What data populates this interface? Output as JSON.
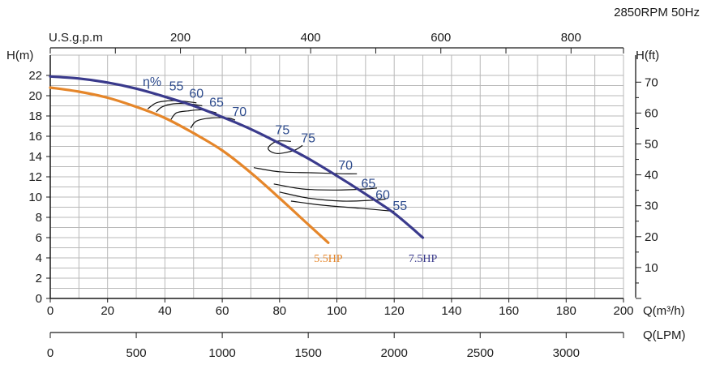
{
  "chart_data": {
    "type": "line",
    "header": "2850RPM  50Hz",
    "axes": {
      "x_bottom": {
        "label": "Q(m³/h)",
        "range": [
          0,
          200
        ],
        "ticks": [
          "0",
          "20",
          "40",
          "60",
          "80",
          "100",
          "120",
          "140",
          "160",
          "180",
          "200"
        ]
      },
      "x_lpm": {
        "label": "Q(LPM)",
        "ticks": [
          "0",
          "500",
          "1000",
          "1500",
          "2000",
          "2500",
          "3000"
        ]
      },
      "x_top": {
        "label": "U.S.g.p.m",
        "ticks": [
          "200",
          "400",
          "600",
          "800"
        ]
      },
      "y_left": {
        "label": "H(m)",
        "range": [
          0,
          22
        ],
        "ticks": [
          "0",
          "2",
          "4",
          "6",
          "8",
          "10",
          "12",
          "14",
          "16",
          "18",
          "20",
          "22"
        ]
      },
      "y_right": {
        "label": "H(ft)",
        "ticks": [
          "10",
          "20",
          "30",
          "40",
          "50",
          "60",
          "70"
        ]
      }
    },
    "grid": true,
    "series": [
      {
        "name": "5.5HP",
        "color": "#e5862a",
        "x": [
          0,
          10,
          20,
          30,
          40,
          50,
          60,
          70,
          80,
          90,
          97
        ],
        "y": [
          20.8,
          20.4,
          19.8,
          18.9,
          17.8,
          16.3,
          14.6,
          12.4,
          9.9,
          7.3,
          5.5
        ]
      },
      {
        "name": "7.5HP",
        "color": "#3a3a8c",
        "x": [
          0,
          10,
          20,
          30,
          40,
          50,
          60,
          70,
          80,
          90,
          100,
          110,
          120,
          130
        ],
        "y": [
          21.9,
          21.7,
          21.3,
          20.7,
          19.9,
          19.0,
          17.9,
          16.7,
          15.3,
          13.8,
          12.1,
          10.3,
          8.4,
          6.0
        ]
      }
    ],
    "efficiency": {
      "label": "η%",
      "left_labels": [
        "55",
        "60",
        "65",
        "70",
        "75",
        "75"
      ],
      "right_labels": [
        "70",
        "65",
        "60",
        "55"
      ],
      "iso_lines": [
        {
          "x": [
            34,
            37,
            41,
            45,
            51
          ],
          "y": [
            18.7,
            19.3,
            19.5,
            19.5,
            19.3
          ]
        },
        {
          "x": [
            37,
            39,
            43,
            48,
            53
          ],
          "y": [
            18.4,
            18.9,
            19.2,
            19.2,
            19.0
          ]
        },
        {
          "x": [
            42,
            44,
            48,
            53,
            58
          ],
          "y": [
            17.6,
            18.3,
            18.5,
            18.6,
            18.3
          ]
        },
        {
          "x": [
            49,
            51,
            56,
            62,
            64.5
          ],
          "y": [
            16.8,
            17.5,
            17.8,
            17.8,
            17.6
          ]
        },
        {
          "x": [
            84,
            79,
            76,
            79,
            85,
            88
          ],
          "y": [
            15.5,
            15.5,
            14.8,
            14.3,
            14.6,
            15.1
          ]
        },
        {
          "x": [
            71,
            80,
            91,
            102,
            107
          ],
          "y": [
            12.9,
            12.5,
            12.4,
            12.3,
            12.3
          ]
        },
        {
          "x": [
            78,
            88,
            100,
            110,
            114
          ],
          "y": [
            11.3,
            10.8,
            10.7,
            10.8,
            10.9
          ]
        },
        {
          "x": [
            80,
            90,
            102,
            113,
            117
          ],
          "y": [
            10.5,
            9.9,
            9.6,
            9.7,
            9.8
          ]
        },
        {
          "x": [
            84,
            95,
            108,
            116,
            120
          ],
          "y": [
            9.6,
            9.2,
            8.9,
            8.7,
            8.6
          ]
        }
      ]
    }
  }
}
